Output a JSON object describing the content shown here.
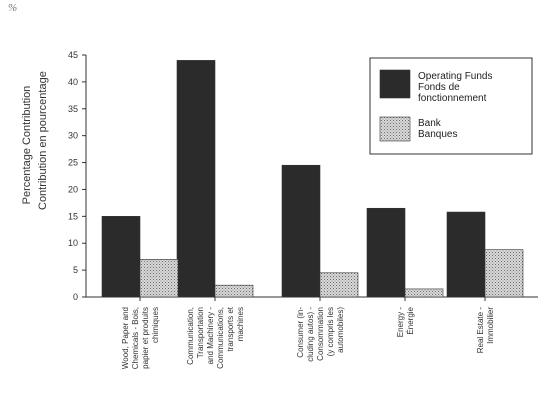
{
  "unit_mark": "%",
  "chart_data": {
    "type": "bar",
    "ylabel": [
      "Percentage Contribution",
      "Contribution en pourcentage"
    ],
    "ylim": [
      0,
      45
    ],
    "yticks": [
      0,
      5,
      10,
      15,
      20,
      25,
      30,
      35,
      40,
      45
    ],
    "categories": [
      [
        "Wood, Paper and",
        "Chemicals - Bois,",
        "papier et produits",
        "chimiques"
      ],
      [
        "Communication,",
        "Transportation",
        "and Machinery -",
        "Communications,",
        "transports et",
        "machines"
      ],
      [
        "Consumer (in-",
        "cluding autos) -",
        "Consommation",
        "(y compris les",
        "automobiles)"
      ],
      [
        "Energy -",
        "Énergie"
      ],
      [
        "Real Estate -",
        "Immobilier"
      ]
    ],
    "series": [
      {
        "name": "Operating Funds / Fonds de fonctionnement",
        "legend": [
          "Operating Funds",
          "Fonds de",
          "fonctionnement"
        ],
        "color": "#2b2b2b",
        "pattern": "solid",
        "values": [
          15,
          44,
          24.5,
          16.5,
          15.8
        ]
      },
      {
        "name": "Bank / Banques",
        "legend": [
          "Bank",
          "Banques"
        ],
        "color": "#bdbdbd",
        "pattern": "dotted",
        "values": [
          7,
          2.2,
          4.5,
          1.5,
          8.8
        ]
      }
    ],
    "legend_position": "top-right",
    "grid": false
  }
}
